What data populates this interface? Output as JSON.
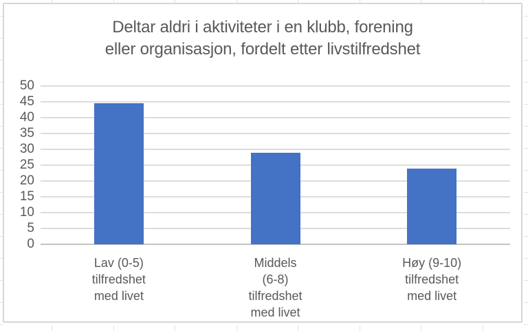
{
  "chart_data": {
    "type": "bar",
    "title": "Deltar aldri i aktiviteter i en klubb, forening eller organisasjon, fordelt etter livstilfredshet",
    "title_lines": [
      "Deltar aldri i aktiviteter i en klubb, forening",
      "eller organisasjon, fordelt etter livstilfredshet"
    ],
    "categories": [
      {
        "label": "Lav (0-5) tilfredshet med livet",
        "label_lines": [
          "Lav (0-5)",
          "tilfredshet",
          "med livet"
        ]
      },
      {
        "label": "Middels (6-8) tilfredshet med livet",
        "label_lines": [
          "Middels",
          "(6-8)",
          "tilfredshet",
          "med livet"
        ]
      },
      {
        "label": "Høy (9-10) tilfredshet med livet",
        "label_lines": [
          "Høy (9-10)",
          "tilfredshet",
          "med livet"
        ]
      }
    ],
    "values": [
      44.5,
      29,
      24
    ],
    "xlabel": "",
    "ylabel": "",
    "ylim": [
      0,
      50
    ],
    "ytick_step": 5,
    "yticks": [
      0,
      5,
      10,
      15,
      20,
      25,
      30,
      35,
      40,
      45,
      50
    ],
    "grid": true,
    "legend": "none",
    "bar_color": "#4472C4",
    "gridline_color": "#DCDCDC",
    "zero_line_color": "#C4C4C4",
    "text_color": "#595959",
    "frame_border_color": "#D6D6D6",
    "background_color": "#FFFFFF"
  }
}
